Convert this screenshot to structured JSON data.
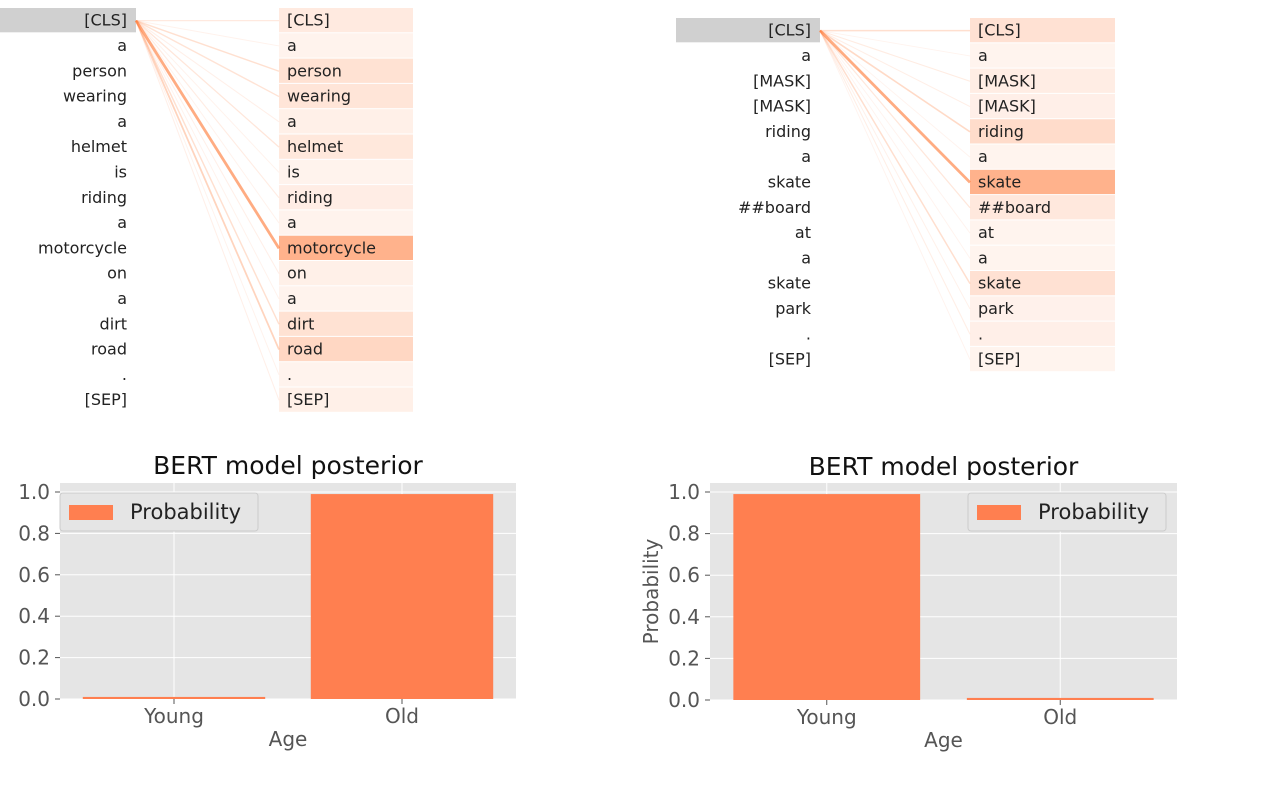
{
  "attention": [
    {
      "tokens": [
        "[CLS]",
        "a",
        "person",
        "wearing",
        "a",
        "helmet",
        "is",
        "riding",
        "a",
        "motorcycle",
        "on",
        "a",
        "dirt",
        "road",
        ".",
        "[SEP]"
      ],
      "query_highlight": 0,
      "weights": [
        0.05,
        0.02,
        0.08,
        0.07,
        0.03,
        0.06,
        0.02,
        0.04,
        0.02,
        0.25,
        0.03,
        0.02,
        0.08,
        0.12,
        0.02,
        0.03
      ],
      "accent_color": "#ff7f3f",
      "query_bg_color": "#d0d0d0"
    },
    {
      "tokens": [
        "[CLS]",
        "a",
        "[MASK]",
        "[MASK]",
        "riding",
        "a",
        "skate",
        "##board",
        "at",
        "a",
        "skate",
        "park",
        ".",
        "[SEP]"
      ],
      "query_highlight": 0,
      "weights": [
        0.1,
        0.02,
        0.05,
        0.04,
        0.12,
        0.02,
        0.3,
        0.07,
        0.02,
        0.02,
        0.1,
        0.03,
        0.04,
        0.02
      ],
      "accent_color": "#ff7f3f",
      "query_bg_color": "#d0d0d0"
    }
  ],
  "chart_data": [
    {
      "type": "bar",
      "title": "BERT model posterior",
      "xlabel": "Age",
      "ylabel": "",
      "categories": [
        "Young",
        "Old"
      ],
      "series": [
        {
          "name": "Probability",
          "values": [
            0.01,
            0.99
          ]
        }
      ],
      "ylim": [
        0,
        1.0
      ],
      "yticks": [
        "0.0",
        "0.2",
        "0.4",
        "0.6",
        "0.8",
        "1.0"
      ],
      "legend": "top-left",
      "grid": true,
      "bar_color": "#ff7f50",
      "background": "#e5e5e5"
    },
    {
      "type": "bar",
      "title": "BERT model posterior",
      "xlabel": "Age",
      "ylabel": "Probability",
      "categories": [
        "Young",
        "Old"
      ],
      "series": [
        {
          "name": "Probability",
          "values": [
            0.99,
            0.01
          ]
        }
      ],
      "ylim": [
        0,
        1.0
      ],
      "yticks": [
        "0.0",
        "0.2",
        "0.4",
        "0.6",
        "0.8",
        "1.0"
      ],
      "legend": "top-right",
      "grid": true,
      "bar_color": "#ff7f50",
      "background": "#e5e5e5"
    }
  ]
}
